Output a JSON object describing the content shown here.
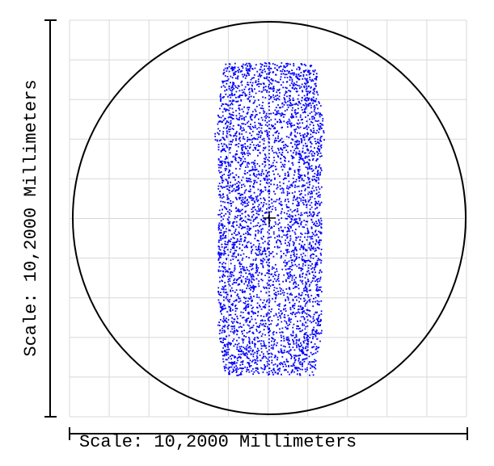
{
  "scales": {
    "vertical": "Scale: 10,2000 Millimeters",
    "horizontal": "Scale: 10,2000 Millimeters"
  }
}
